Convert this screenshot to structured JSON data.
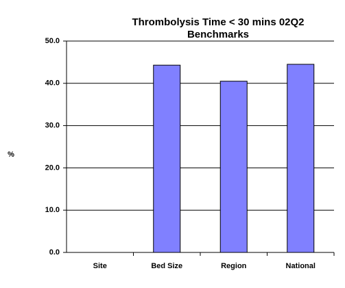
{
  "chart_data": {
    "type": "bar",
    "title": [
      "Thrombolysis Time < 30 mins  02Q2",
      "Benchmarks"
    ],
    "y_label": "%",
    "categories": [
      "Site",
      "Bed Size",
      "Region",
      "National"
    ],
    "values": [
      null,
      44.3,
      40.5,
      44.5
    ],
    "color": "#8080ff",
    "ylim": [
      0,
      50
    ],
    "yticks": [
      {
        "value": 0,
        "label": "0.0"
      },
      {
        "value": 10,
        "label": "10.0"
      },
      {
        "value": 20,
        "label": "20.0"
      },
      {
        "value": 30,
        "label": "30.0"
      },
      {
        "value": 40,
        "label": "40.0"
      },
      {
        "value": 50,
        "label": "50.0"
      }
    ],
    "grid": true
  }
}
